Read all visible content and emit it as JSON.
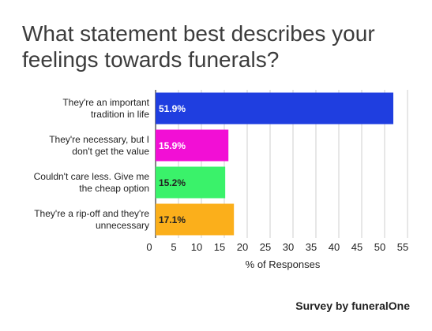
{
  "title_lines": [
    "What statement best describes your",
    "feelings towards funerals?"
  ],
  "footer": "Survey by funeralOne",
  "chart_data": {
    "type": "bar",
    "orientation": "horizontal",
    "title": "What statement best describes your feelings towards funerals?",
    "xlabel": "% of Responses",
    "ylabel": "",
    "xlim": [
      0,
      55
    ],
    "xticks": [
      0,
      5,
      10,
      15,
      20,
      25,
      30,
      35,
      40,
      45,
      50,
      55
    ],
    "grid": true,
    "categories": [
      [
        "They're an important",
        "tradition in life"
      ],
      [
        "They're necessary, but I",
        "don't get the value"
      ],
      [
        "Couldn't care less. Give me",
        "the cheap option"
      ],
      [
        "They're a rip-off and they're",
        "unnecessary"
      ]
    ],
    "values": [
      51.9,
      15.9,
      15.2,
      17.1
    ],
    "labels": [
      "51.9%",
      "15.9%",
      "15.2%",
      "17.1%"
    ],
    "colors": [
      "#1f3ee0",
      "#f20fd5",
      "#3af26a",
      "#fbaf1b"
    ],
    "label_colors": [
      "#ffffff",
      "#ffffff",
      "#222222",
      "#222222"
    ]
  }
}
